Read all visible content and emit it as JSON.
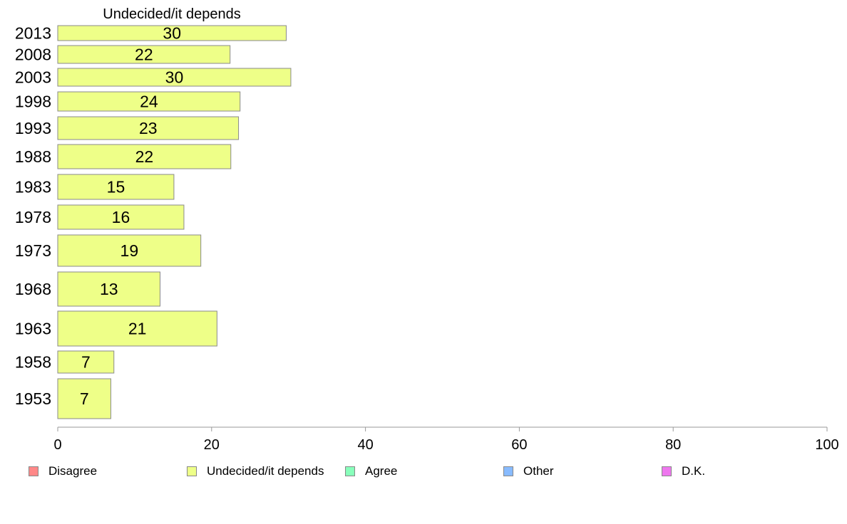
{
  "chart_data": {
    "type": "bar",
    "orientation": "horizontal",
    "title": "Undecided/it depends",
    "categories": [
      "2013",
      "2008",
      "2003",
      "1998",
      "1993",
      "1988",
      "1983",
      "1978",
      "1973",
      "1968",
      "1963",
      "1958",
      "1953"
    ],
    "series": [
      {
        "name": "Undecided/it depends",
        "values": [
          30,
          22,
          30,
          24,
          23,
          22,
          15,
          16,
          19,
          13,
          21,
          7,
          7
        ],
        "display_values": [
          29.7,
          22.4,
          30.3,
          23.7,
          23.5,
          22.5,
          15.1,
          16.4,
          18.6,
          13.3,
          20.7,
          7.3,
          6.9
        ],
        "color": "#EEFF88"
      }
    ],
    "xlim": [
      0,
      100
    ],
    "xticks": [
      0,
      20,
      40,
      60,
      80,
      100
    ],
    "legend_position": "bottom",
    "legend": [
      {
        "label": "Disagree",
        "color": "#FF8888"
      },
      {
        "label": "Undecided/it depends",
        "color": "#EEFF88"
      },
      {
        "label": "Agree",
        "color": "#88FFBB"
      },
      {
        "label": "Other",
        "color": "#88BBFF"
      },
      {
        "label": "D.K.",
        "color": "#EE77EE"
      }
    ]
  }
}
